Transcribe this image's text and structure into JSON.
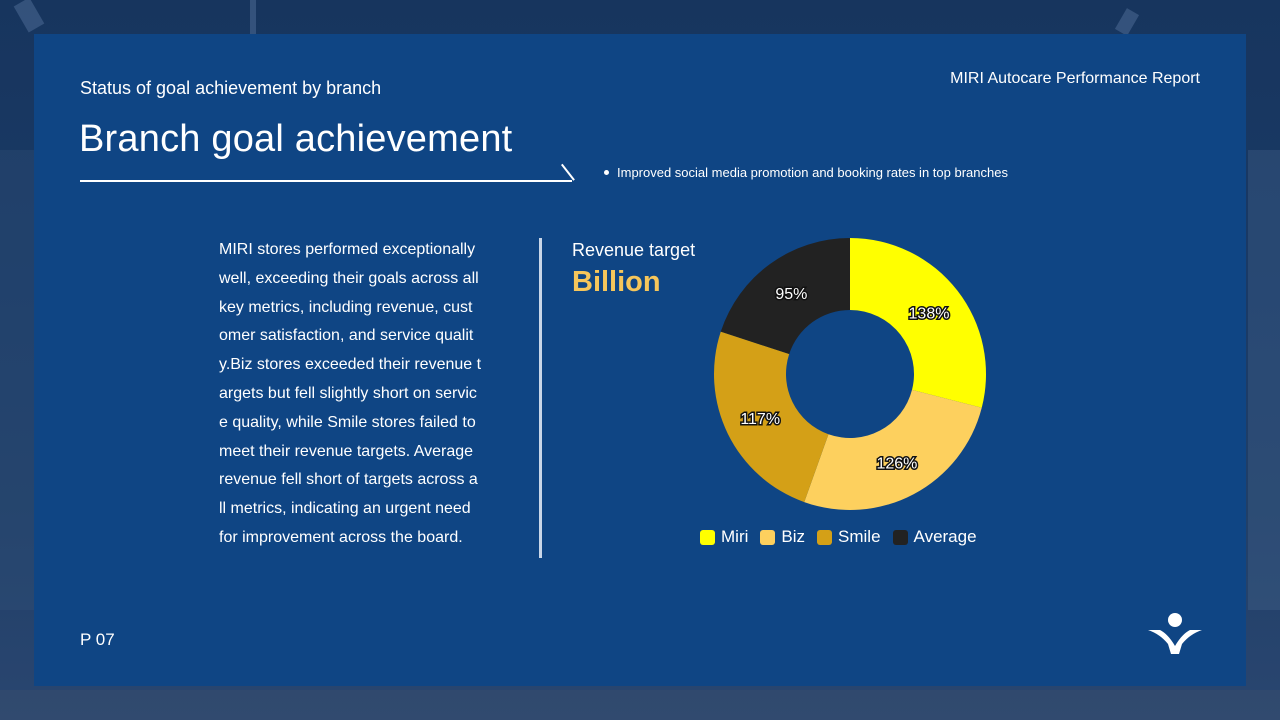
{
  "header": {
    "subtitle": "Status of goal achievement by branch",
    "report_title": "MIRI Autocare Performance Report",
    "title": "Branch goal achievement",
    "bullet": "Improved social media promotion and booking rates in top branches"
  },
  "body": {
    "paragraph": "MIRI stores performed exceptionally\nwell, exceeding their goals across all\n key metrics, including revenue, cust\nomer satisfaction, and service qualit\ny.Biz stores exceeded their revenue t\nargets but fell slightly short on servic\ne quality, while Smile stores failed to\nmeet their revenue targets. Average\nrevenue fell short of targets across a\nll metrics, indicating an urgent need\nfor improvement across the board."
  },
  "chart": {
    "label": "Revenue target",
    "unit": "Billion"
  },
  "footer": {
    "page": "P 07",
    "logo_icon": "person-arms-up-icon"
  },
  "chart_data": {
    "type": "pie",
    "subtype": "donut",
    "title": "Revenue target",
    "subtitle": "Billion",
    "categories": [
      "Miri",
      "Biz",
      "Smile",
      "Average"
    ],
    "values": [
      138,
      126,
      117,
      95
    ],
    "labels": [
      "138%",
      "126%",
      "117%",
      "95%"
    ],
    "colors": [
      "#ffff00",
      "#fdd05e",
      "#d4a017",
      "#222222"
    ],
    "start_angle": "12 o'clock, clockwise",
    "legend_position": "bottom"
  }
}
